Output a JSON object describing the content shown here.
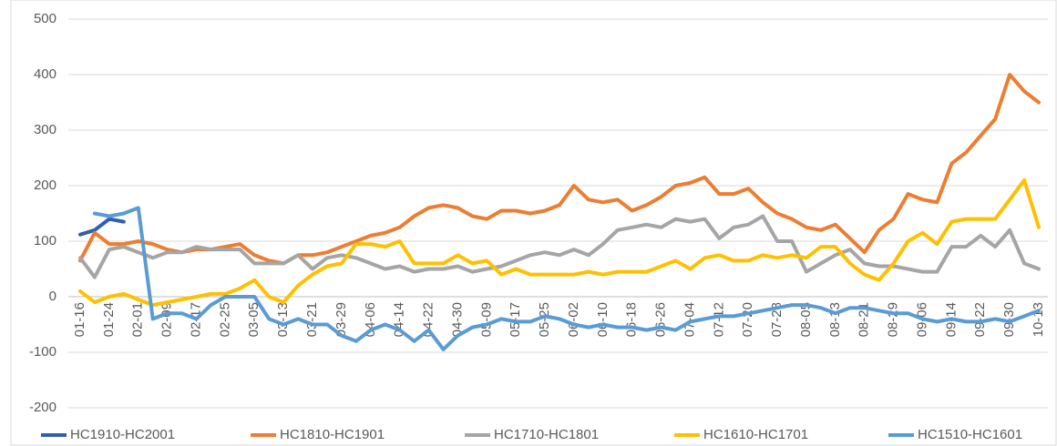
{
  "chart_data": {
    "type": "line",
    "categories": [
      "01-16",
      null,
      "01-24",
      null,
      "02-01",
      null,
      "02-09",
      null,
      "02-17",
      null,
      "02-25",
      null,
      "03-05",
      null,
      "03-13",
      null,
      "03-21",
      null,
      "03-29",
      null,
      "04-06",
      null,
      "04-14",
      null,
      "04-22",
      null,
      "04-30",
      null,
      "05-09",
      null,
      "05-17",
      null,
      "05-25",
      null,
      "06-02",
      null,
      "06-10",
      null,
      "06-18",
      null,
      "06-26",
      null,
      "07-04",
      null,
      "07-12",
      null,
      "07-20",
      null,
      "07-28",
      null,
      "08-05",
      null,
      "08-13",
      null,
      "08-21",
      null,
      "08-29",
      null,
      "09-06",
      null,
      "09-14",
      null,
      "09-22",
      null,
      "09-30",
      null,
      "10-13"
    ],
    "series": [
      {
        "name": "HC1910-HC2001",
        "color": "#2f5fb3",
        "values": [
          112,
          120,
          140,
          135,
          null,
          null,
          null,
          null,
          null,
          null,
          null,
          null,
          null,
          null,
          null,
          null,
          null,
          null,
          null,
          null,
          null,
          null,
          null,
          null,
          null,
          null,
          null,
          null,
          null,
          null,
          null,
          null,
          null,
          null,
          null,
          null,
          null,
          null,
          null,
          null,
          null,
          null,
          null,
          null,
          null,
          null,
          null,
          null,
          null,
          null,
          null,
          null,
          null,
          null,
          null,
          null,
          null,
          null,
          null,
          null,
          null,
          null,
          null,
          null,
          null,
          null,
          null
        ]
      },
      {
        "name": "HC1810-HC1901",
        "color": "#ed7d31",
        "values": [
          65,
          115,
          95,
          95,
          100,
          95,
          85,
          80,
          85,
          85,
          90,
          95,
          75,
          65,
          60,
          75,
          75,
          80,
          90,
          100,
          110,
          115,
          125,
          145,
          160,
          165,
          160,
          145,
          140,
          155,
          155,
          150,
          155,
          165,
          200,
          175,
          170,
          175,
          155,
          165,
          180,
          200,
          205,
          215,
          185,
          185,
          195,
          170,
          150,
          140,
          125,
          120,
          130,
          105,
          80,
          120,
          140,
          185,
          175,
          170,
          240,
          260,
          290,
          320,
          400,
          370,
          350
        ]
      },
      {
        "name": "HC1710-HC1801",
        "color": "#a5a5a5",
        "values": [
          70,
          35,
          85,
          90,
          80,
          70,
          80,
          80,
          90,
          85,
          85,
          85,
          60,
          60,
          60,
          75,
          50,
          70,
          75,
          70,
          60,
          50,
          55,
          45,
          50,
          50,
          55,
          45,
          50,
          55,
          65,
          75,
          80,
          75,
          85,
          75,
          95,
          120,
          125,
          130,
          125,
          140,
          135,
          140,
          105,
          125,
          130,
          145,
          100,
          100,
          45,
          60,
          75,
          85,
          60,
          55,
          55,
          50,
          45,
          45,
          90,
          90,
          110,
          90,
          120,
          60,
          50
        ]
      },
      {
        "name": "HC1610-HC1701",
        "color": "#ffc000",
        "values": [
          10,
          -10,
          0,
          5,
          -5,
          -15,
          -10,
          -5,
          0,
          5,
          5,
          15,
          30,
          0,
          -10,
          20,
          40,
          55,
          60,
          95,
          95,
          90,
          100,
          60,
          60,
          60,
          75,
          60,
          65,
          40,
          50,
          40,
          40,
          40,
          40,
          45,
          40,
          45,
          45,
          45,
          55,
          65,
          50,
          70,
          75,
          65,
          65,
          75,
          70,
          75,
          70,
          90,
          90,
          60,
          40,
          30,
          60,
          100,
          115,
          95,
          135,
          140,
          140,
          140,
          175,
          210,
          125
        ]
      },
      {
        "name": "HC1510-HC1601",
        "color": "#5b9bd5",
        "values": [
          null,
          150,
          145,
          150,
          160,
          -40,
          -30,
          -30,
          -40,
          -15,
          0,
          0,
          0,
          -40,
          -50,
          -40,
          -50,
          -50,
          -70,
          -80,
          -60,
          -50,
          -60,
          -80,
          -60,
          -95,
          -70,
          -55,
          -50,
          -40,
          -45,
          -45,
          -35,
          -40,
          -50,
          -55,
          -50,
          -55,
          -55,
          -60,
          -55,
          -60,
          -45,
          -40,
          -35,
          -35,
          -30,
          -25,
          -20,
          -15,
          -15,
          -20,
          -30,
          -20,
          -20,
          -25,
          -30,
          -30,
          -40,
          -45,
          -40,
          -45,
          -45,
          -40,
          -45,
          -35,
          -25
        ]
      }
    ],
    "ylim": [
      -200,
      500
    ],
    "yticks": [
      -200,
      -100,
      0,
      100,
      200,
      300,
      400,
      500
    ],
    "grid": true,
    "legend": "bottom"
  }
}
